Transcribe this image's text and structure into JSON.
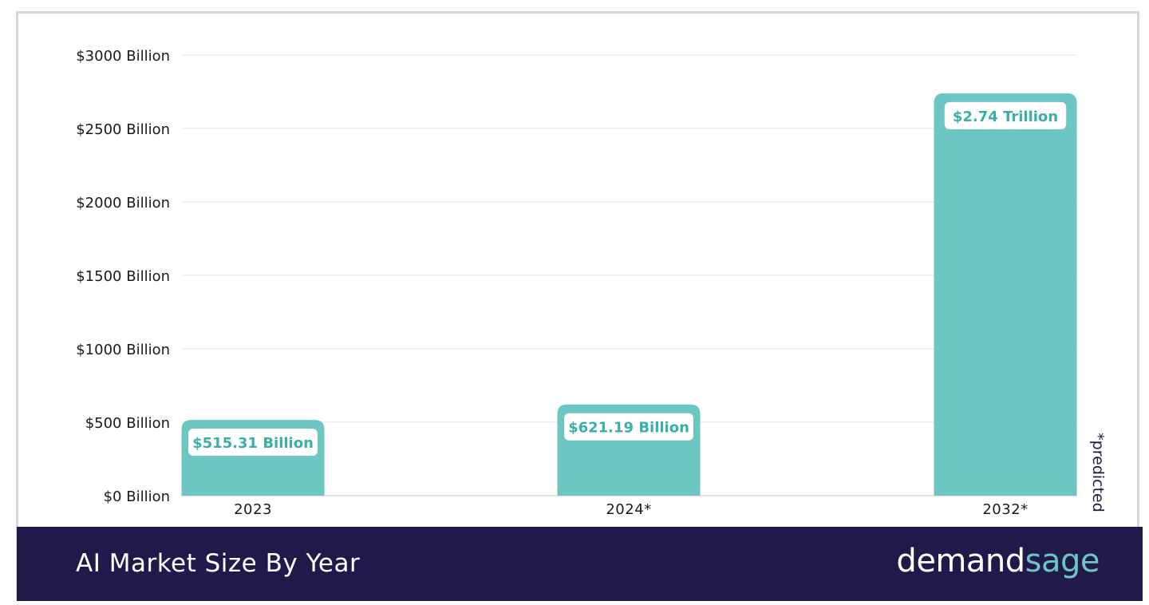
{
  "chart_data": {
    "type": "bar",
    "categories": [
      "2023",
      "2024*",
      "2032*"
    ],
    "values": [
      515.31,
      621.19,
      2740
    ],
    "data_labels": [
      "$515.31 Billion",
      "$621.19 Billion",
      "$2.74 Trillion"
    ],
    "y_ticks": [
      {
        "value": 0,
        "label": "$0 Billion"
      },
      {
        "value": 500,
        "label": "$500 Billion"
      },
      {
        "value": 1000,
        "label": "$1000 Billion"
      },
      {
        "value": 1500,
        "label": "$1500 Billion"
      },
      {
        "value": 2000,
        "label": "$2000 Billion"
      },
      {
        "value": 2500,
        "label": "$2500 Billion"
      },
      {
        "value": 3000,
        "label": "$3000 Billion"
      }
    ],
    "ylim": [
      0,
      3000
    ],
    "grid": true,
    "bar_color": "#6cc6c2",
    "label_color": "#3aaea8",
    "title": "AI Market Size By Year",
    "note": "*predicted"
  },
  "footer": {
    "title": "AI Market Size By Year",
    "brand_part1": "demand",
    "brand_part2": "sage",
    "background": "#1f1a4a"
  }
}
